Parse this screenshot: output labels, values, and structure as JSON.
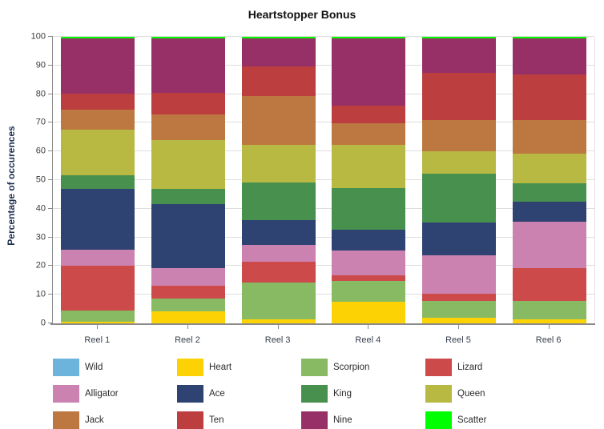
{
  "chart_data": {
    "type": "bar",
    "stacked": true,
    "title": "Heartstopper Bonus",
    "xlabel": "",
    "ylabel": "Percentage of occurences",
    "ylim": [
      0,
      100
    ],
    "ytick_step": 10,
    "grid": true,
    "legend_position": "bottom",
    "categories": [
      "Reel 1",
      "Reel 2",
      "Reel 3",
      "Reel 4",
      "Reel 5",
      "Reel 6"
    ],
    "series": [
      {
        "name": "Wild",
        "color": "#6cb4dc",
        "values": [
          0,
          0,
          0,
          0,
          0,
          0
        ]
      },
      {
        "name": "Heart",
        "color": "#fcd205",
        "values": [
          0.6,
          4.1,
          1.3,
          7.6,
          2.0,
          1.5
        ]
      },
      {
        "name": "Scorpion",
        "color": "#87ba63",
        "values": [
          3.9,
          4.5,
          13.0,
          7.1,
          5.8,
          6.3
        ]
      },
      {
        "name": "Lizard",
        "color": "#cc4a4a",
        "values": [
          15.6,
          4.6,
          7.1,
          2.2,
          2.6,
          11.6
        ]
      },
      {
        "name": "Alligator",
        "color": "#cc82b1",
        "values": [
          5.6,
          6.1,
          6.1,
          8.5,
          13.4,
          16.1
        ]
      },
      {
        "name": "Ace",
        "color": "#2e4372",
        "values": [
          21.1,
          22.4,
          8.6,
          7.3,
          11.3,
          7.1
        ]
      },
      {
        "name": "King",
        "color": "#47904e",
        "values": [
          4.9,
          5.2,
          13.0,
          14.6,
          17.0,
          6.4
        ]
      },
      {
        "name": "Queen",
        "color": "#b7b942",
        "values": [
          16.0,
          17.2,
          13.2,
          15.0,
          8.0,
          10.1
        ]
      },
      {
        "name": "Jack",
        "color": "#bc7840",
        "values": [
          7.0,
          8.7,
          17.1,
          7.6,
          10.9,
          11.9
        ]
      },
      {
        "name": "Ten",
        "color": "#bc3e3e",
        "values": [
          5.6,
          7.6,
          10.4,
          6.2,
          16.3,
          15.8
        ]
      },
      {
        "name": "Nine",
        "color": "#963066",
        "values": [
          19.1,
          19.1,
          9.7,
          23.4,
          12.2,
          12.7
        ]
      },
      {
        "name": "Scatter",
        "color": "#00ff00",
        "values": [
          0.6,
          0.5,
          0.5,
          0.5,
          0.5,
          0.5
        ]
      }
    ]
  }
}
